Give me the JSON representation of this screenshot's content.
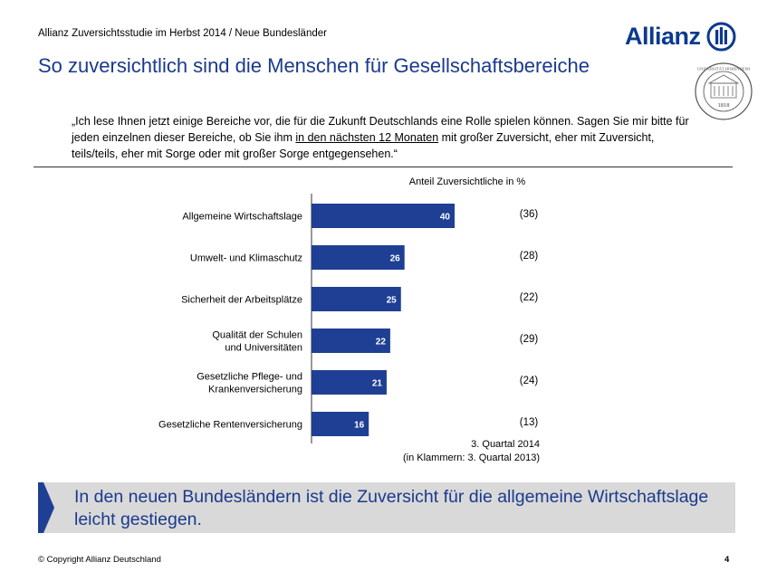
{
  "header": {
    "study": "Allianz Zuversichtsstudie im Herbst 2014 / Neue Bundesländer",
    "title": "So zuversichtlich sind die Menschen für Gesellschaftsbereiche",
    "logo_text": "Allianz",
    "seal_year": "1818",
    "seal_top_text": "UNIVERSITÄT HOHENHEIM"
  },
  "question": {
    "part1": "„Ich lese Ihnen jetzt einige Bereiche vor, die für die Zukunft Deutschlands eine Rolle spielen können. Sagen Sie mir bitte für jeden einzelnen dieser Bereiche, ob Sie ihm ",
    "underlined": "in den nächsten 12 Monaten",
    "part2": " mit großer Zuversicht, eher mit Zuversicht, teils/teils, eher mit Sorge oder mit großer Sorge entgegensehen.“"
  },
  "chart_data": {
    "type": "bar",
    "orientation": "horizontal",
    "title": "Anteil Zuversichtliche in %",
    "categories": [
      [
        "Allgemeine Wirtschaftslage"
      ],
      [
        "Umwelt- und Klimaschutz"
      ],
      [
        "Sicherheit der Arbeitsplätze"
      ],
      [
        "Qualität der Schulen",
        "und Universitäten"
      ],
      [
        "Gesetzliche Pflege- und",
        "Krankenversicherung"
      ],
      [
        "Gesetzliche Rentenversicherung"
      ]
    ],
    "series": [
      {
        "name": "3. Quartal 2014",
        "values": [
          40,
          26,
          25,
          22,
          21,
          16
        ]
      },
      {
        "name": "3. Quartal 2013",
        "values": [
          36,
          28,
          22,
          29,
          24,
          13
        ]
      }
    ],
    "prior_labels": [
      "(36)",
      "(28)",
      "(22)",
      "(29)",
      "(24)",
      "(13)"
    ],
    "xlim": [
      0,
      100
    ],
    "bar_color": "#1f3f94",
    "footnote_line1": "3. Quartal 2014",
    "footnote_line2": "(in Klammern: 3. Quartal 2013)"
  },
  "takeaway": {
    "text": "In den neuen Bundesländern ist die Zuversicht für die allgemeine Wirtschaftslage leicht gestiegen.",
    "arrow_color": "#1f3f94"
  },
  "footer": {
    "copyright": "© Copyright Allianz Deutschland",
    "page": "4"
  }
}
